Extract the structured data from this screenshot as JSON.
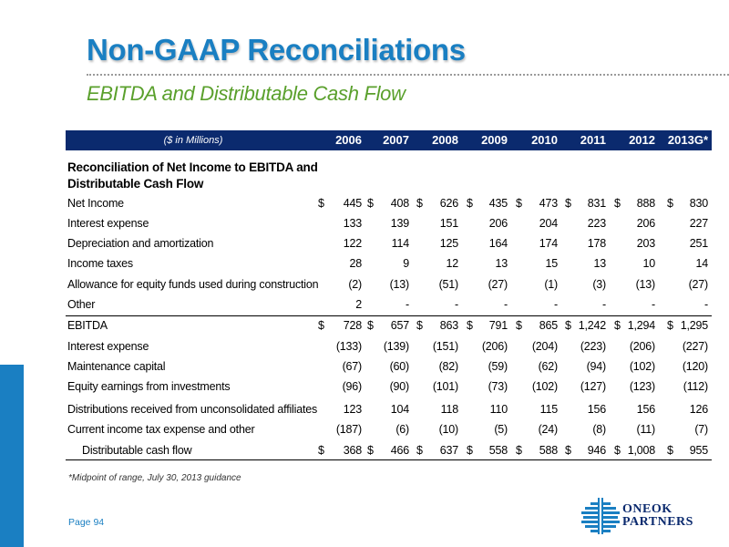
{
  "title": "Non-GAAP Reconciliations",
  "subtitle": "EBITDA and Distributable Cash Flow",
  "table": {
    "units": "($ in Millions)",
    "years": [
      "2006",
      "2007",
      "2008",
      "2009",
      "2010",
      "2011",
      "2012",
      "2013G*"
    ],
    "section_line1": "Reconciliation of Net Income to EBITDA and",
    "section_line2": "Distributable Cash Flow",
    "rows": [
      {
        "label": "Net Income",
        "dollar": true,
        "values": [
          "445",
          "408",
          "626",
          "435",
          "473",
          "831",
          "888",
          "830"
        ]
      },
      {
        "label": "Interest expense",
        "dollar": false,
        "values": [
          "133",
          "139",
          "151",
          "206",
          "204",
          "223",
          "206",
          "227"
        ]
      },
      {
        "label": "Depreciation and amortization",
        "dollar": false,
        "values": [
          "122",
          "114",
          "125",
          "164",
          "174",
          "178",
          "203",
          "251"
        ]
      },
      {
        "label": "Income taxes",
        "dollar": false,
        "values": [
          "28",
          "9",
          "12",
          "13",
          "15",
          "13",
          "10",
          "14"
        ]
      },
      {
        "label": "Allowance for equity funds used during construction",
        "dollar": false,
        "values": [
          "(2)",
          "(13)",
          "(51)",
          "(27)",
          "(1)",
          "(3)",
          "(13)",
          "(27)"
        ]
      },
      {
        "label": "Other",
        "dollar": false,
        "values": [
          "2",
          "-",
          "-",
          "-",
          "-",
          "-",
          "-",
          "-"
        ]
      },
      {
        "label": "EBITDA",
        "dollar": true,
        "values": [
          "728",
          "657",
          "863",
          "791",
          "865",
          "1,242",
          "1,294",
          "1,295"
        ]
      },
      {
        "label": "Interest expense",
        "dollar": false,
        "values": [
          "(133)",
          "(139)",
          "(151)",
          "(206)",
          "(204)",
          "(223)",
          "(206)",
          "(227)"
        ]
      },
      {
        "label": "Maintenance capital",
        "dollar": false,
        "values": [
          "(67)",
          "(60)",
          "(82)",
          "(59)",
          "(62)",
          "(94)",
          "(102)",
          "(120)"
        ]
      },
      {
        "label": "Equity earnings from investments",
        "dollar": false,
        "values": [
          "(96)",
          "(90)",
          "(101)",
          "(73)",
          "(102)",
          "(127)",
          "(123)",
          "(112)"
        ]
      },
      {
        "label": "Distributions received from unconsolidated affiliates",
        "dollar": false,
        "values": [
          "123",
          "104",
          "118",
          "110",
          "115",
          "156",
          "156",
          "126"
        ]
      },
      {
        "label": "Current income tax expense and other",
        "dollar": false,
        "values": [
          "(187)",
          "(6)",
          "(10)",
          "(5)",
          "(24)",
          "(8)",
          "(11)",
          "(7)"
        ]
      },
      {
        "label": "Distributable cash flow",
        "dollar": true,
        "values": [
          "368",
          "466",
          "637",
          "558",
          "588",
          "946",
          "1,008",
          "955"
        ]
      }
    ]
  },
  "footnote": "*Midpoint of range, July 30, 2013 guidance",
  "page_number": "Page 94",
  "logo": {
    "line1": "ONEOK",
    "line2": "PARTNERS"
  },
  "colors": {
    "title_blue": "#1a7fc2",
    "subtitle_green": "#5aa02c",
    "header_navy": "#0b2a6e"
  }
}
